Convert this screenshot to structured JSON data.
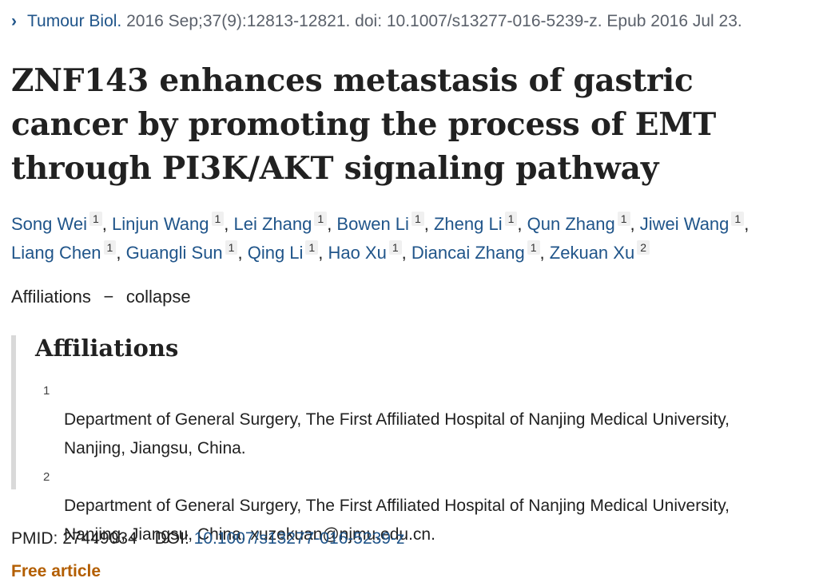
{
  "citation": {
    "chevron": "›",
    "journal": "Tumour Biol.",
    "details": "2016 Sep;37(9):12813-12821. doi: 10.1007/s13277-016-5239-z. Epub 2016 Jul 23."
  },
  "title": "ZNF143 enhances metastasis of gastric cancer by promoting the process of EMT through PI3K/AKT signaling pathway",
  "authors": [
    {
      "name": "Song Wei",
      "aff": "1"
    },
    {
      "name": "Linjun Wang",
      "aff": "1"
    },
    {
      "name": "Lei Zhang",
      "aff": "1"
    },
    {
      "name": "Bowen Li",
      "aff": "1"
    },
    {
      "name": "Zheng Li",
      "aff": "1"
    },
    {
      "name": "Qun Zhang",
      "aff": "1"
    },
    {
      "name": "Jiwei Wang",
      "aff": "1"
    },
    {
      "name": "Liang Chen",
      "aff": "1"
    },
    {
      "name": "Guangli Sun",
      "aff": "1"
    },
    {
      "name": "Qing Li",
      "aff": "1"
    },
    {
      "name": "Hao Xu",
      "aff": "1"
    },
    {
      "name": "Diancai Zhang",
      "aff": "1"
    },
    {
      "name": "Zekuan Xu",
      "aff": "2"
    }
  ],
  "affiliations_toggle": {
    "label": "Affiliations",
    "dash": "−",
    "action": "collapse"
  },
  "affiliations": {
    "heading": "Affiliations",
    "items": [
      {
        "num": "1",
        "text": "Department of General Surgery, The First Affiliated Hospital of Nanjing Medical University,\nNanjing, Jiangsu, China."
      },
      {
        "num": "2",
        "text": "Department of General Surgery, The First Affiliated Hospital of Nanjing Medical University,\nNanjing, Jiangsu, China. xuzekuan@njmu.edu.cn."
      }
    ]
  },
  "identifiers": {
    "pmid_label": "PMID:",
    "pmid": "27449034",
    "doi_label": "DOI:",
    "doi": "10.1007/s13277-016-5239-z"
  },
  "free_article": "Free article",
  "colors": {
    "link": "#20558a",
    "free": "#b35e00"
  }
}
